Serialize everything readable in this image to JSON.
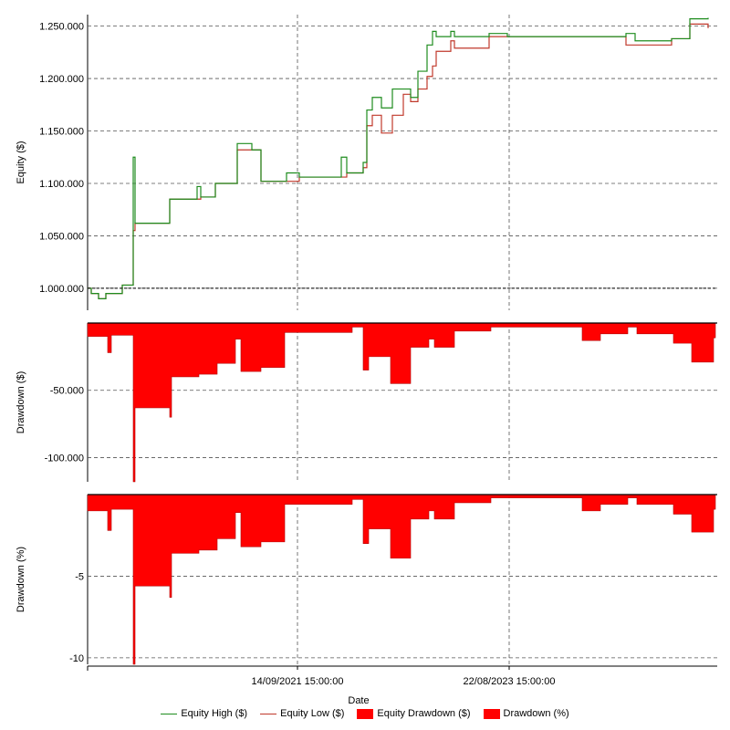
{
  "chart_data": [
    {
      "type": "line",
      "panel": "equity",
      "ylabel": "Equity ($)",
      "yticks": [
        "1.000.000",
        "1.050.000",
        "1.100.000",
        "1.150.000",
        "1.200.000",
        "1.250.000"
      ],
      "ytick_values": [
        1000000,
        1050000,
        1100000,
        1150000,
        1200000,
        1250000
      ],
      "ylim": [
        979000,
        1261000
      ],
      "baseline": 1000000,
      "x": [
        0,
        4,
        8,
        12,
        20,
        26,
        38,
        48,
        50,
        52,
        54,
        56,
        62,
        74,
        90,
        98,
        120,
        124,
        130,
        140,
        148,
        162,
        164,
        180,
        190,
        204,
        218,
        232,
        254,
        278,
        284,
        288,
        298,
        302,
        306,
        312,
        322,
        334,
        346,
        354,
        362,
        372,
        378,
        382,
        398,
        402,
        422,
        440,
        460,
        482,
        540,
        590,
        600,
        640,
        660,
        680
      ],
      "series": [
        {
          "name": "Equity Low ($)",
          "color": "#c0392b",
          "values": [
            1000000,
            995000,
            995000,
            990000,
            995000,
            995000,
            1003000,
            1003000,
            1055000,
            1062000,
            1062000,
            1062000,
            1062000,
            1062000,
            1085000,
            1085000,
            1085000,
            1087000,
            1087000,
            1100000,
            1100000,
            1100000,
            1132000,
            1132000,
            1102000,
            1102000,
            1102000,
            1106000,
            1106000,
            1106000,
            1110000,
            1110000,
            1110000,
            1115000,
            1155000,
            1165000,
            1148000,
            1165000,
            1185000,
            1178000,
            1190000,
            1202000,
            1212000,
            1226000,
            1236000,
            1229000,
            1229000,
            1240000,
            1240000,
            1240000,
            1240000,
            1232000,
            1232000,
            1238000,
            1252000,
            1248000
          ]
        },
        {
          "name": "Equity High ($)",
          "color": "#1e8c1e",
          "values": [
            1000000,
            995000,
            995000,
            990000,
            995000,
            995000,
            1003000,
            1003000,
            1125000,
            1062000,
            1062000,
            1062000,
            1062000,
            1062000,
            1085000,
            1085000,
            1097000,
            1087000,
            1087000,
            1100000,
            1100000,
            1100000,
            1138000,
            1132000,
            1102000,
            1102000,
            1110000,
            1106000,
            1106000,
            1125000,
            1110000,
            1110000,
            1110000,
            1120000,
            1170000,
            1182000,
            1172000,
            1190000,
            1190000,
            1182000,
            1207000,
            1232000,
            1245000,
            1240000,
            1245000,
            1240000,
            1240000,
            1243000,
            1240000,
            1240000,
            1240000,
            1243000,
            1236000,
            1238000,
            1257000,
            1258000
          ]
        }
      ]
    },
    {
      "type": "area",
      "panel": "drawdown-usd",
      "ylabel": "Drawdown ($)",
      "yticks": [
        "-50.000",
        "-100.000"
      ],
      "ytick_values": [
        -50000,
        -100000
      ],
      "ylim": [
        -118000,
        0
      ],
      "series": [
        {
          "name": "Equity Drawdown ($)",
          "color": "#ff0000",
          "x": [
            0,
            2,
            20,
            22,
            26,
            28,
            50,
            52,
            54,
            56,
            90,
            92,
            120,
            122,
            140,
            142,
            160,
            162,
            166,
            168,
            188,
            190,
            214,
            216,
            252,
            254,
            288,
            290,
            300,
            302,
            306,
            308,
            330,
            332,
            352,
            354,
            372,
            374,
            378,
            380,
            400,
            402,
            440,
            442,
            540,
            542,
            560,
            562,
            590,
            592,
            600,
            602,
            640,
            642,
            660,
            662,
            686,
            688
          ],
          "values": [
            -10000,
            -10000,
            -10000,
            -22000,
            -9000,
            -9000,
            -118000,
            -63000,
            -63000,
            -63000,
            -70000,
            -40000,
            -40000,
            -38000,
            -38000,
            -30000,
            -30000,
            -12000,
            -12000,
            -36000,
            -36000,
            -33000,
            -33000,
            -7000,
            -7000,
            -7000,
            -7000,
            -3000,
            -3000,
            -35000,
            -35000,
            -25000,
            -25000,
            -45000,
            -45000,
            -18000,
            -18000,
            -12000,
            -12000,
            -18000,
            -18000,
            -6000,
            -6000,
            -3000,
            -3000,
            -13000,
            -13000,
            -8000,
            -8000,
            -3000,
            -3000,
            -8000,
            -8000,
            -15000,
            -15000,
            -29000,
            -11000,
            -11000
          ]
        }
      ]
    },
    {
      "type": "area",
      "panel": "drawdown-pct",
      "ylabel": "Drawdown (%)",
      "yticks": [
        "-5",
        "-10"
      ],
      "ytick_values": [
        -5,
        -10
      ],
      "ylim": [
        -10.4,
        0
      ],
      "series": [
        {
          "name": "Drawdown (%)",
          "color": "#ff0000",
          "values": [
            -1.0,
            -1.0,
            -1.0,
            -2.2,
            -0.9,
            -0.9,
            -10.4,
            -5.6,
            -5.6,
            -5.6,
            -6.3,
            -3.6,
            -3.6,
            -3.4,
            -3.4,
            -2.7,
            -2.7,
            -1.1,
            -1.1,
            -3.2,
            -3.2,
            -2.9,
            -2.9,
            -0.6,
            -0.6,
            -0.6,
            -0.6,
            -0.3,
            -0.3,
            -3.0,
            -3.0,
            -2.1,
            -2.1,
            -3.9,
            -3.9,
            -1.5,
            -1.5,
            -1.0,
            -1.0,
            -1.5,
            -1.5,
            -0.5,
            -0.5,
            -0.2,
            -0.2,
            -1.0,
            -1.0,
            -0.6,
            -0.6,
            -0.2,
            -0.2,
            -0.6,
            -0.6,
            -1.2,
            -1.2,
            -2.3,
            -0.9,
            -0.9
          ]
        }
      ]
    }
  ],
  "x_axis": {
    "xlabel": "Date",
    "tick_labels": [
      "14/09/2021 15:00:00",
      "22/08/2023 15:00:00"
    ],
    "tick_x": [
      230,
      462
    ],
    "xlim": [
      0,
      690
    ]
  },
  "legend": {
    "placement": "bottom",
    "items": [
      {
        "label": "Equity High ($)",
        "kind": "line",
        "color": "#1e8c1e"
      },
      {
        "label": "Equity Low ($)",
        "kind": "line",
        "color": "#c0392b"
      },
      {
        "label": "Equity Drawdown ($)",
        "kind": "fill",
        "color": "#ff0000"
      },
      {
        "label": "Drawdown (%)",
        "kind": "fill",
        "color": "#ff0000"
      }
    ]
  }
}
